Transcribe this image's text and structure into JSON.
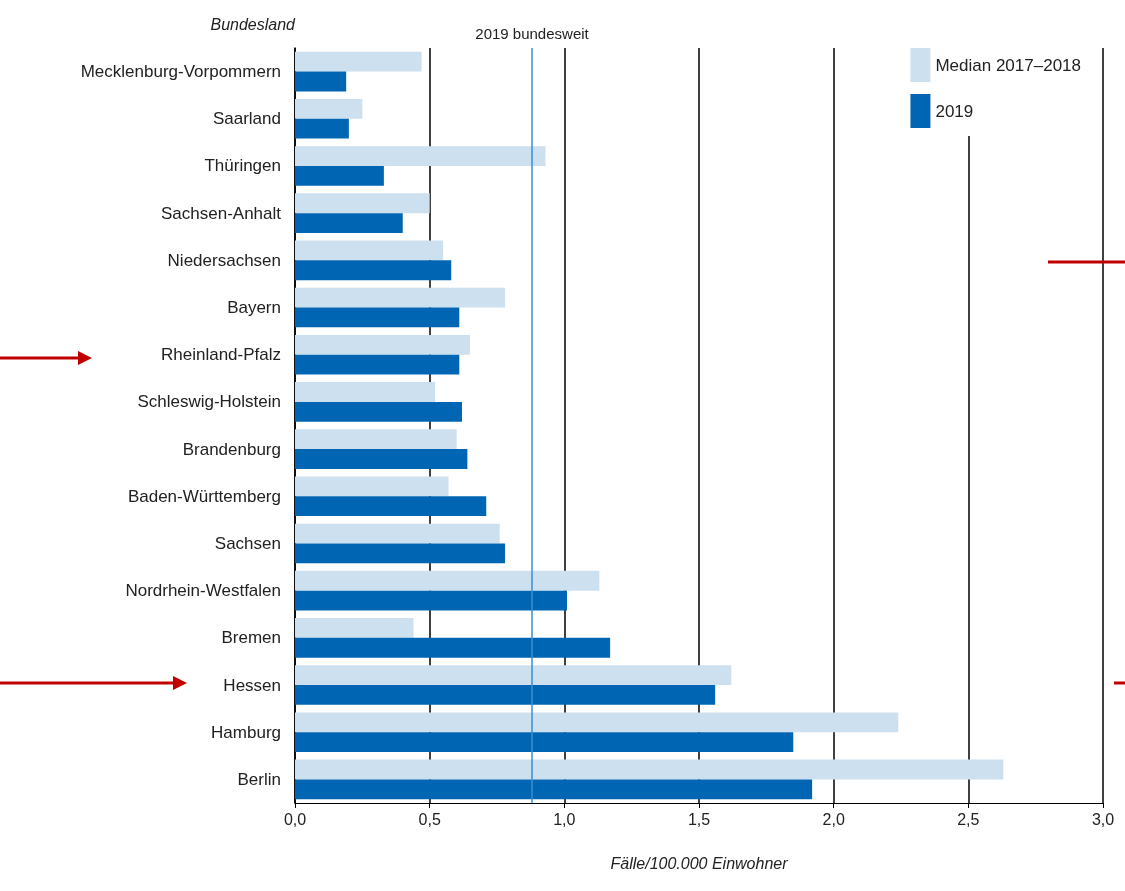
{
  "chart_data": {
    "type": "bar",
    "orientation": "horizontal",
    "ylabel": "Bundesland",
    "xlabel": "Fälle/100.000 Einwohner",
    "categories": [
      "Mecklenburg-Vorpommern",
      "Saarland",
      "Thüringen",
      "Sachsen-Anhalt",
      "Niedersachsen",
      "Bayern",
      "Rheinland-Pfalz",
      "Schleswig-Holstein",
      "Brandenburg",
      "Baden-Württemberg",
      "Sachsen",
      "Nordrhein-Westfalen",
      "Bremen",
      "Hessen",
      "Hamburg",
      "Berlin"
    ],
    "series": [
      {
        "name": "Median 2017–2018",
        "color": "#cce0ef",
        "values": [
          0.47,
          0.25,
          0.93,
          0.5,
          0.55,
          0.78,
          0.65,
          0.52,
          0.6,
          0.57,
          0.76,
          1.13,
          0.44,
          1.62,
          2.24,
          2.63
        ]
      },
      {
        "name": "2019",
        "color": "#0066b3",
        "values": [
          0.19,
          0.2,
          0.33,
          0.4,
          0.58,
          0.61,
          0.61,
          0.62,
          0.64,
          0.71,
          0.78,
          1.01,
          1.17,
          1.56,
          1.85,
          1.92
        ]
      }
    ],
    "ref_lines": [
      {
        "axis": "x",
        "value": 0.88,
        "label": "2019 bundesweit",
        "color": "#3a8fd0"
      }
    ],
    "xlim": [
      0,
      3
    ],
    "xticks": [
      {
        "value": 0,
        "label": "0,0"
      },
      {
        "value": 0.5,
        "label": "0,5"
      },
      {
        "value": 1,
        "label": "1,0"
      },
      {
        "value": 1.5,
        "label": "1,5"
      },
      {
        "value": 2,
        "label": "2,0"
      },
      {
        "value": 2.5,
        "label": "2,5"
      },
      {
        "value": 3,
        "label": "3,0"
      }
    ],
    "grid": "x",
    "legend": "top right"
  }
}
